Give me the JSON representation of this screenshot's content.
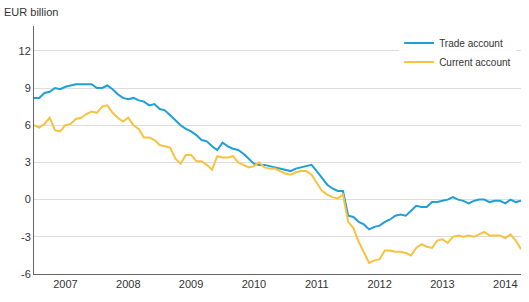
{
  "chart_data": {
    "type": "line",
    "ylabel": "EUR billion",
    "categories": [
      null,
      null,
      null,
      null,
      null,
      null,
      "2007",
      null,
      null,
      null,
      null,
      null,
      null,
      null,
      null,
      null,
      null,
      null,
      "2008",
      null,
      null,
      null,
      null,
      null,
      null,
      null,
      null,
      null,
      null,
      null,
      "2009",
      null,
      null,
      null,
      null,
      null,
      null,
      null,
      null,
      null,
      null,
      null,
      "2010",
      null,
      null,
      null,
      null,
      null,
      null,
      null,
      null,
      null,
      null,
      null,
      "2011",
      null,
      null,
      null,
      null,
      null,
      null,
      null,
      null,
      null,
      null,
      null,
      "2012",
      null,
      null,
      null,
      null,
      null,
      null,
      null,
      null,
      null,
      null,
      null,
      "2013",
      null,
      null,
      null,
      null,
      null,
      null,
      null,
      null,
      null,
      null,
      null,
      "2014",
      null,
      null,
      null
    ],
    "series": [
      {
        "name": "Trade account",
        "color": "#1f9fd4",
        "values": [
          8.2,
          8.2,
          8.6,
          8.7,
          9.0,
          8.9,
          9.1,
          9.2,
          9.3,
          9.3,
          9.3,
          9.3,
          9.0,
          9.0,
          9.2,
          8.9,
          8.5,
          8.2,
          8.1,
          8.2,
          8.0,
          7.9,
          7.6,
          7.7,
          7.3,
          7.2,
          6.8,
          6.4,
          6.0,
          5.7,
          5.5,
          5.2,
          4.8,
          4.7,
          4.3,
          4.0,
          4.6,
          4.3,
          4.1,
          4.0,
          3.7,
          3.3,
          2.9,
          2.8,
          2.8,
          2.7,
          2.6,
          2.5,
          2.4,
          2.3,
          2.5,
          2.6,
          2.7,
          2.8,
          2.3,
          1.7,
          1.2,
          0.9,
          0.7,
          0.7,
          -1.3,
          -1.4,
          -1.8,
          -2.0,
          -2.4,
          -2.2,
          -2.1,
          -1.8,
          -1.6,
          -1.3,
          -1.2,
          -1.3,
          -0.9,
          -0.5,
          -0.6,
          -0.6,
          -0.2,
          -0.2,
          -0.1,
          0.0,
          0.2,
          0.0,
          -0.1,
          -0.3,
          -0.1,
          0.0,
          0.0,
          -0.2,
          -0.1,
          -0.1,
          -0.3,
          0.0,
          -0.2,
          -0.1
        ]
      },
      {
        "name": "Current account",
        "color": "#f7c23e",
        "values": [
          6.0,
          5.8,
          6.1,
          6.6,
          5.6,
          5.5,
          6.0,
          6.1,
          6.5,
          6.6,
          6.9,
          7.1,
          7.0,
          7.5,
          7.6,
          7.0,
          6.6,
          6.3,
          6.6,
          6.0,
          5.7,
          5.0,
          5.0,
          4.8,
          4.4,
          4.3,
          4.2,
          3.3,
          2.9,
          3.6,
          3.6,
          3.1,
          3.1,
          2.8,
          2.4,
          3.5,
          3.4,
          3.4,
          3.5,
          3.0,
          2.8,
          2.6,
          2.7,
          3.0,
          2.6,
          2.5,
          2.5,
          2.3,
          2.1,
          2.0,
          2.2,
          2.3,
          2.3,
          2.0,
          1.3,
          0.7,
          0.4,
          0.2,
          0.1,
          0.4,
          -1.8,
          -2.3,
          -3.4,
          -4.2,
          -5.1,
          -4.9,
          -4.8,
          -4.1,
          -4.1,
          -4.2,
          -4.2,
          -4.3,
          -4.5,
          -3.9,
          -3.6,
          -3.8,
          -3.9,
          -3.3,
          -3.2,
          -3.5,
          -3.0,
          -2.9,
          -3.0,
          -2.9,
          -3.0,
          -2.8,
          -2.6,
          -2.9,
          -2.9,
          -2.9,
          -3.1,
          -2.8,
          -3.3,
          -4.0
        ]
      }
    ],
    "ylim": [
      -6,
      14
    ],
    "yticks": [
      -6,
      -3,
      0,
      3,
      6,
      9,
      12
    ],
    "grid": true,
    "legend": "top-right"
  }
}
